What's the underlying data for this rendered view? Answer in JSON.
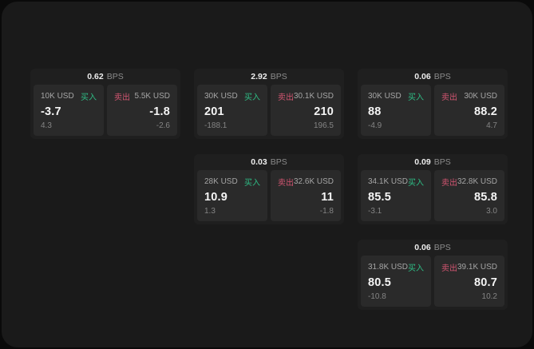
{
  "labels": {
    "bps_unit": "BPS",
    "buy": "买入",
    "sell": "卖出"
  },
  "colors": {
    "buy_green": "#2ebd85",
    "sell_red": "#d25571",
    "panel_bg": "#1a1a1a",
    "card_bg": "#1f1f1f",
    "tile_bg": "#2a2a2a"
  },
  "cards": [
    {
      "bps": "0.62",
      "buy": {
        "amount": "10K USD",
        "value": "-3.7",
        "delta": "4.3"
      },
      "sell": {
        "amount": "5.5K USD",
        "value": "-1.8",
        "delta": "-2.6"
      }
    },
    {
      "bps": "2.92",
      "buy": {
        "amount": "30K USD",
        "value": "201",
        "delta": "-188.1"
      },
      "sell": {
        "amount": "30.1K USD",
        "value": "210",
        "delta": "196.5"
      }
    },
    {
      "bps": "0.06",
      "buy": {
        "amount": "30K USD",
        "value": "88",
        "delta": "-4.9"
      },
      "sell": {
        "amount": "30K USD",
        "value": "88.2",
        "delta": "4.7"
      }
    },
    {
      "bps": "0.03",
      "buy": {
        "amount": "28K USD",
        "value": "10.9",
        "delta": "1.3"
      },
      "sell": {
        "amount": "32.6K USD",
        "value": "11",
        "delta": "-1.8"
      }
    },
    {
      "bps": "0.09",
      "buy": {
        "amount": "34.1K USD",
        "value": "85.5",
        "delta": "-3.1"
      },
      "sell": {
        "amount": "32.8K USD",
        "value": "85.8",
        "delta": "3.0"
      }
    },
    {
      "bps": "0.06",
      "buy": {
        "amount": "31.8K USD",
        "value": "80.5",
        "delta": "-10.8"
      },
      "sell": {
        "amount": "39.1K USD",
        "value": "80.7",
        "delta": "10.2"
      }
    }
  ]
}
